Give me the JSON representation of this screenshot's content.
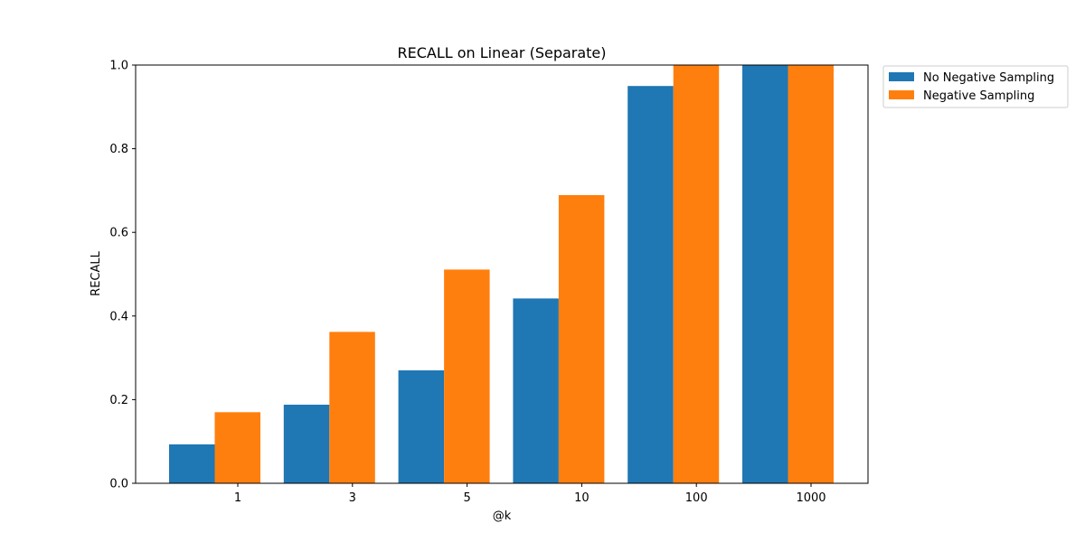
{
  "chart_data": {
    "type": "bar",
    "title": "RECALL on Linear (Separate)",
    "xlabel": "@k",
    "ylabel": "RECALL",
    "categories": [
      "1",
      "3",
      "5",
      "10",
      "100",
      "1000"
    ],
    "ylim": [
      0,
      1.0
    ],
    "yticks": [
      "0.0",
      "0.2",
      "0.4",
      "0.6",
      "0.8",
      "1.0"
    ],
    "grid": false,
    "legend_position": "outside-top-right",
    "series": [
      {
        "name": "No Negative Sampling",
        "color": "#1f77b4",
        "values": [
          0.093,
          0.188,
          0.27,
          0.442,
          0.95,
          1.0
        ]
      },
      {
        "name": "Negative Sampling",
        "color": "#ff7f0e",
        "values": [
          0.17,
          0.362,
          0.511,
          0.689,
          1.0,
          1.0
        ]
      }
    ]
  }
}
